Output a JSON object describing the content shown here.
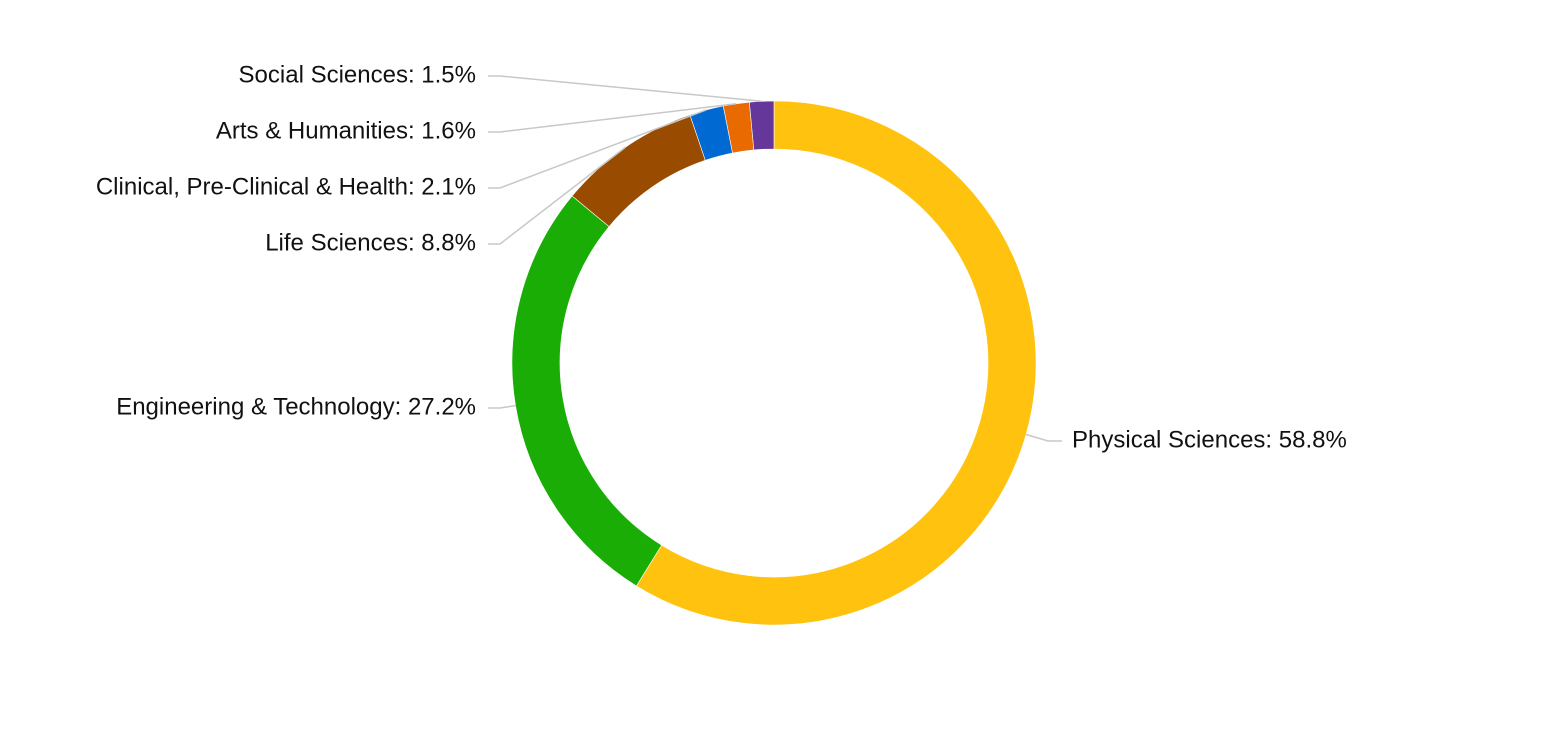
{
  "chart_data": {
    "type": "pie",
    "variant": "donut",
    "start_angle_deg": 0,
    "direction": "clockwise",
    "slices": [
      {
        "label": "Physical Sciences",
        "value": 58.8,
        "color": "#FFC20E",
        "text": "Physical Sciences: 58.8%"
      },
      {
        "label": "Engineering & Technology",
        "value": 27.2,
        "color": "#19AD06",
        "text": "Engineering & Technology: 27.2%"
      },
      {
        "label": "Life Sciences",
        "value": 8.8,
        "color": "#994C00",
        "text": "Life Sciences: 8.8%"
      },
      {
        "label": "Clinical, Pre-Clinical & Health",
        "value": 2.1,
        "color": "#0069D2",
        "text": "Clinical, Pre-Clinical & Health: 2.1%"
      },
      {
        "label": "Arts & Humanities",
        "value": 1.6,
        "color": "#E86A00",
        "text": "Arts & Humanities: 1.6%"
      },
      {
        "label": "Social Sciences",
        "value": 1.5,
        "color": "#65379B",
        "text": "Social Sciences: 1.5%"
      }
    ],
    "legend": "none"
  }
}
